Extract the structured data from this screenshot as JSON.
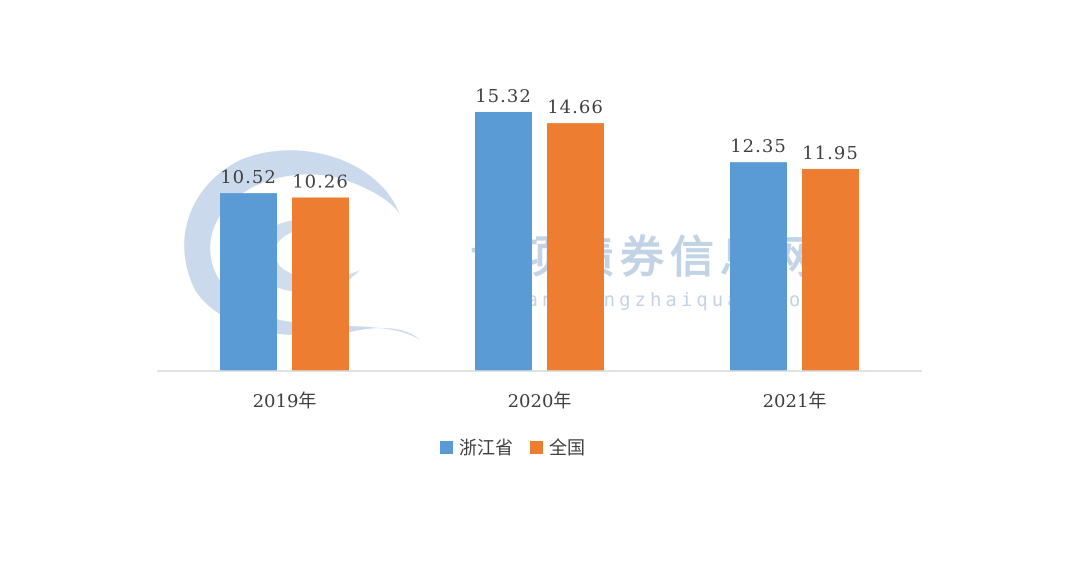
{
  "watermark": {
    "title": "专项债券信息网",
    "url": "zhuanxiangzhaiquan.com",
    "color": "#b8cce4"
  },
  "chart_data": {
    "type": "bar",
    "categories": [
      "2019年",
      "2020年",
      "2021年"
    ],
    "series": [
      {
        "name": "浙江省",
        "color": "#5b9bd5",
        "values": [
          10.52,
          15.32,
          12.35
        ],
        "labels": [
          "10.52",
          "15.32",
          "12.35"
        ]
      },
      {
        "name": "全国",
        "color": "#ed7d31",
        "values": [
          10.26,
          14.66,
          11.95
        ],
        "labels": [
          "10.26",
          "14.66",
          "11.95"
        ]
      }
    ],
    "ylim": [
      0,
      16.5
    ],
    "grid": false,
    "legend": "bottom",
    "title": "",
    "xlabel": "",
    "ylabel": ""
  }
}
